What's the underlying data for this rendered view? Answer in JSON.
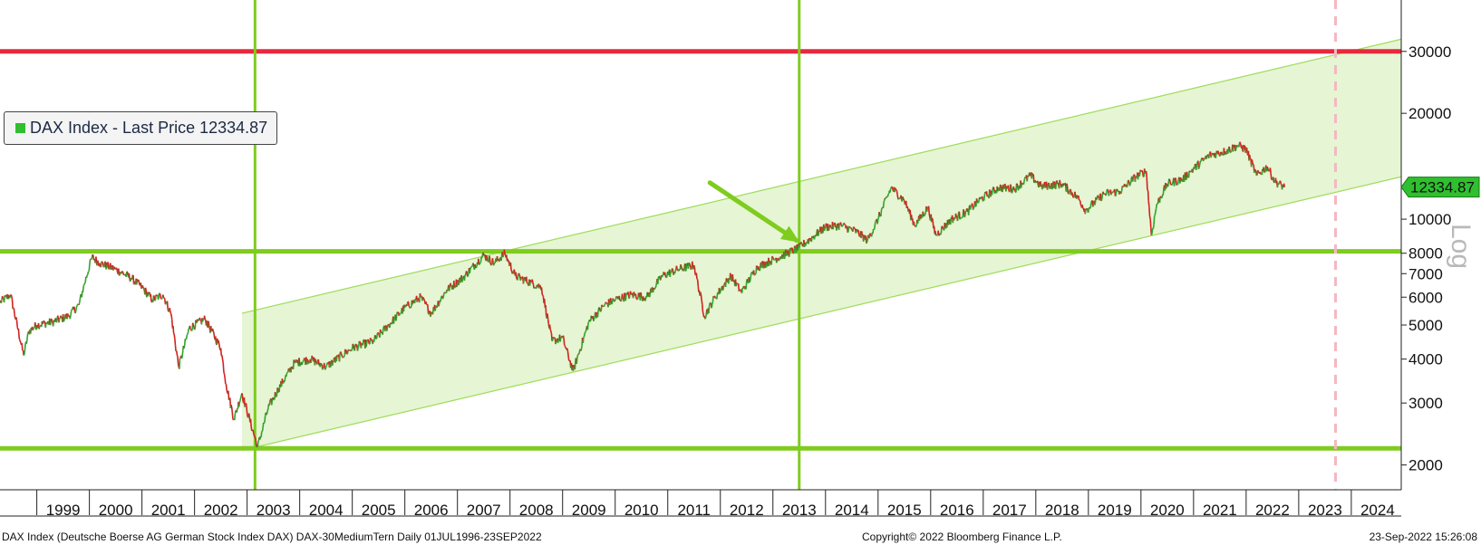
{
  "legend": {
    "label": "DAX Index - Last Price 12334.87",
    "swatch_color": "#2fbf2f"
  },
  "price_tag": {
    "value": "12334.87",
    "color": "#2fbf2f"
  },
  "axis_scale_label": "Log",
  "footer": {
    "left": "DAX Index (Deutsche Boerse AG German Stock Index DAX) DAX-30MediumTern  Daily 01JUL1996-23SEP2022",
    "center": "Copyright© 2022 Bloomberg Finance L.P.",
    "right": "23-Sep-2022 15:26:08"
  },
  "colors": {
    "up": "#2ea52e",
    "down": "#d42020",
    "lines": "#7fcc1f",
    "red_line": "#e8283c",
    "channel_fill": "#e6f5d4",
    "channel_edge": "#9fdc5a"
  },
  "chart_data": {
    "type": "line",
    "title": "",
    "xlabel": "",
    "ylabel": "",
    "y_scale": "log",
    "ylim": [
      1700,
      42000
    ],
    "xlim": [
      1998.3,
      2024.95
    ],
    "x_tick_labels": [
      "1999",
      "2000",
      "2001",
      "2002",
      "2003",
      "2004",
      "2005",
      "2006",
      "2007",
      "2008",
      "2009",
      "2010",
      "2011",
      "2012",
      "2013",
      "2014",
      "2015",
      "2016",
      "2017",
      "2018",
      "2019",
      "2020",
      "2021",
      "2022",
      "2023",
      "2024"
    ],
    "y_ticks": [
      2000,
      3000,
      4000,
      5000,
      6000,
      7000,
      8000,
      10000,
      20000,
      30000
    ],
    "series": [
      {
        "name": "DAX Index - Last Price",
        "last_value": 12334.87,
        "points": [
          [
            1998.3,
            5800
          ],
          [
            1998.5,
            6100
          ],
          [
            1998.75,
            4100
          ],
          [
            1998.85,
            4800
          ],
          [
            1999.0,
            5000
          ],
          [
            1999.3,
            5100
          ],
          [
            1999.6,
            5300
          ],
          [
            1999.8,
            5700
          ],
          [
            1999.9,
            6500
          ],
          [
            2000.05,
            7800
          ],
          [
            2000.2,
            7500
          ],
          [
            2000.5,
            7200
          ],
          [
            2000.8,
            6800
          ],
          [
            2001.0,
            6400
          ],
          [
            2001.2,
            5900
          ],
          [
            2001.4,
            6100
          ],
          [
            2001.55,
            5400
          ],
          [
            2001.7,
            3800
          ],
          [
            2001.9,
            4900
          ],
          [
            2002.2,
            5200
          ],
          [
            2002.5,
            4300
          ],
          [
            2002.6,
            3400
          ],
          [
            2002.75,
            2700
          ],
          [
            2002.9,
            3200
          ],
          [
            2003.2,
            2250
          ],
          [
            2003.4,
            2900
          ],
          [
            2003.6,
            3300
          ],
          [
            2003.9,
            3900
          ],
          [
            2004.2,
            4000
          ],
          [
            2004.5,
            3800
          ],
          [
            2004.8,
            4100
          ],
          [
            2005.0,
            4300
          ],
          [
            2005.4,
            4500
          ],
          [
            2005.8,
            5200
          ],
          [
            2006.0,
            5600
          ],
          [
            2006.3,
            6000
          ],
          [
            2006.5,
            5400
          ],
          [
            2006.8,
            6300
          ],
          [
            2007.1,
            6800
          ],
          [
            2007.5,
            7900
          ],
          [
            2007.7,
            7500
          ],
          [
            2007.9,
            8000
          ],
          [
            2008.1,
            6900
          ],
          [
            2008.4,
            6600
          ],
          [
            2008.6,
            6400
          ],
          [
            2008.8,
            4500
          ],
          [
            2009.0,
            4600
          ],
          [
            2009.2,
            3700
          ],
          [
            2009.5,
            5100
          ],
          [
            2009.8,
            5700
          ],
          [
            2010.0,
            5900
          ],
          [
            2010.3,
            6100
          ],
          [
            2010.6,
            6000
          ],
          [
            2010.9,
            6900
          ],
          [
            2011.2,
            7200
          ],
          [
            2011.5,
            7400
          ],
          [
            2011.7,
            5300
          ],
          [
            2011.9,
            6000
          ],
          [
            2012.2,
            6900
          ],
          [
            2012.4,
            6200
          ],
          [
            2012.7,
            7300
          ],
          [
            2012.95,
            7600
          ],
          [
            2013.2,
            7900
          ],
          [
            2013.5,
            8300
          ],
          [
            2013.8,
            9000
          ],
          [
            2014.0,
            9500
          ],
          [
            2014.3,
            9600
          ],
          [
            2014.6,
            9200
          ],
          [
            2014.8,
            8700
          ],
          [
            2015.0,
            10000
          ],
          [
            2015.25,
            12300
          ],
          [
            2015.5,
            11300
          ],
          [
            2015.7,
            9600
          ],
          [
            2015.95,
            10800
          ],
          [
            2016.1,
            9000
          ],
          [
            2016.4,
            10000
          ],
          [
            2016.7,
            10500
          ],
          [
            2016.95,
            11400
          ],
          [
            2017.3,
            12300
          ],
          [
            2017.6,
            12200
          ],
          [
            2017.9,
            13300
          ],
          [
            2018.1,
            12400
          ],
          [
            2018.5,
            12600
          ],
          [
            2018.8,
            11500
          ],
          [
            2018.95,
            10600
          ],
          [
            2019.3,
            11800
          ],
          [
            2019.6,
            12000
          ],
          [
            2019.9,
            13200
          ],
          [
            2020.1,
            13700
          ],
          [
            2020.2,
            9000
          ],
          [
            2020.3,
            11000
          ],
          [
            2020.5,
            12600
          ],
          [
            2020.8,
            13000
          ],
          [
            2020.95,
            13700
          ],
          [
            2021.3,
            15200
          ],
          [
            2021.6,
            15600
          ],
          [
            2021.85,
            16200
          ],
          [
            2022.0,
            15800
          ],
          [
            2022.2,
            13300
          ],
          [
            2022.4,
            14100
          ],
          [
            2022.55,
            12800
          ],
          [
            2022.73,
            12334.87
          ]
        ]
      }
    ],
    "horizontal_lines": [
      {
        "name": "red-resistance",
        "y": 30000,
        "color": "#e8283c"
      },
      {
        "name": "support-8000",
        "y": 8100,
        "color": "#7fcc1f"
      },
      {
        "name": "support-2200",
        "y": 2230,
        "color": "#7fcc1f"
      }
    ],
    "vertical_lines": [
      {
        "name": "vline-2003",
        "x": 2003.15,
        "color": "#7fcc1f"
      },
      {
        "name": "vline-2013",
        "x": 2013.5,
        "color": "#7fcc1f"
      },
      {
        "name": "vline-2023-dashed",
        "x": 2023.7,
        "color": "#f4b8c2",
        "dashed": true
      }
    ],
    "channel": {
      "upper": [
        [
          2002.9,
          5400
        ],
        [
          2024.95,
          32500
        ]
      ],
      "lower": [
        [
          2002.9,
          2200
        ],
        [
          2024.95,
          13200
        ]
      ]
    },
    "arrow": {
      "from": [
        2011.8,
        12700
      ],
      "to": [
        2013.45,
        8700
      ]
    },
    "grid": false,
    "legend_position": "top-left"
  }
}
